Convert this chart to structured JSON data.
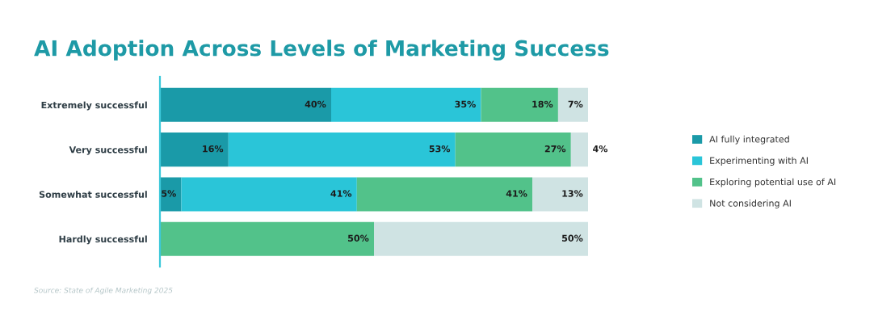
{
  "chart_data": {
    "type": "bar",
    "orientation": "horizontal",
    "stacked": true,
    "title": "AI Adoption Across Levels of Marketing Success",
    "categories": [
      "Extremely successful",
      "Very successful",
      "Somewhat successful",
      "Hardly successful"
    ],
    "series": [
      {
        "name": "AI fully integrated",
        "color": "#1a9aa8",
        "values": [
          40,
          16,
          5,
          0
        ],
        "value_labels": [
          "40%",
          "16%",
          "5%",
          null
        ]
      },
      {
        "name": "Experimenting with AI",
        "color": "#2ac5d8",
        "values": [
          35,
          53,
          41,
          0
        ],
        "value_labels": [
          "35%",
          "53%",
          "41%",
          null
        ]
      },
      {
        "name": "Exploring potential use of AI",
        "color": "#52c28a",
        "values": [
          18,
          27,
          41,
          50
        ],
        "value_labels": [
          "18%",
          "27%",
          "41%",
          "50%"
        ]
      },
      {
        "name": "Not considering AI",
        "color": "#cfe3e3",
        "values": [
          7,
          4,
          13,
          50
        ],
        "value_labels": [
          "7%",
          "4%",
          "13%",
          "50%"
        ]
      }
    ],
    "xlim": [
      0,
      100
    ],
    "tick_labels": "y",
    "legend": "right",
    "annotations": [
      "Source: State of Agile Marketing 2025"
    ]
  }
}
